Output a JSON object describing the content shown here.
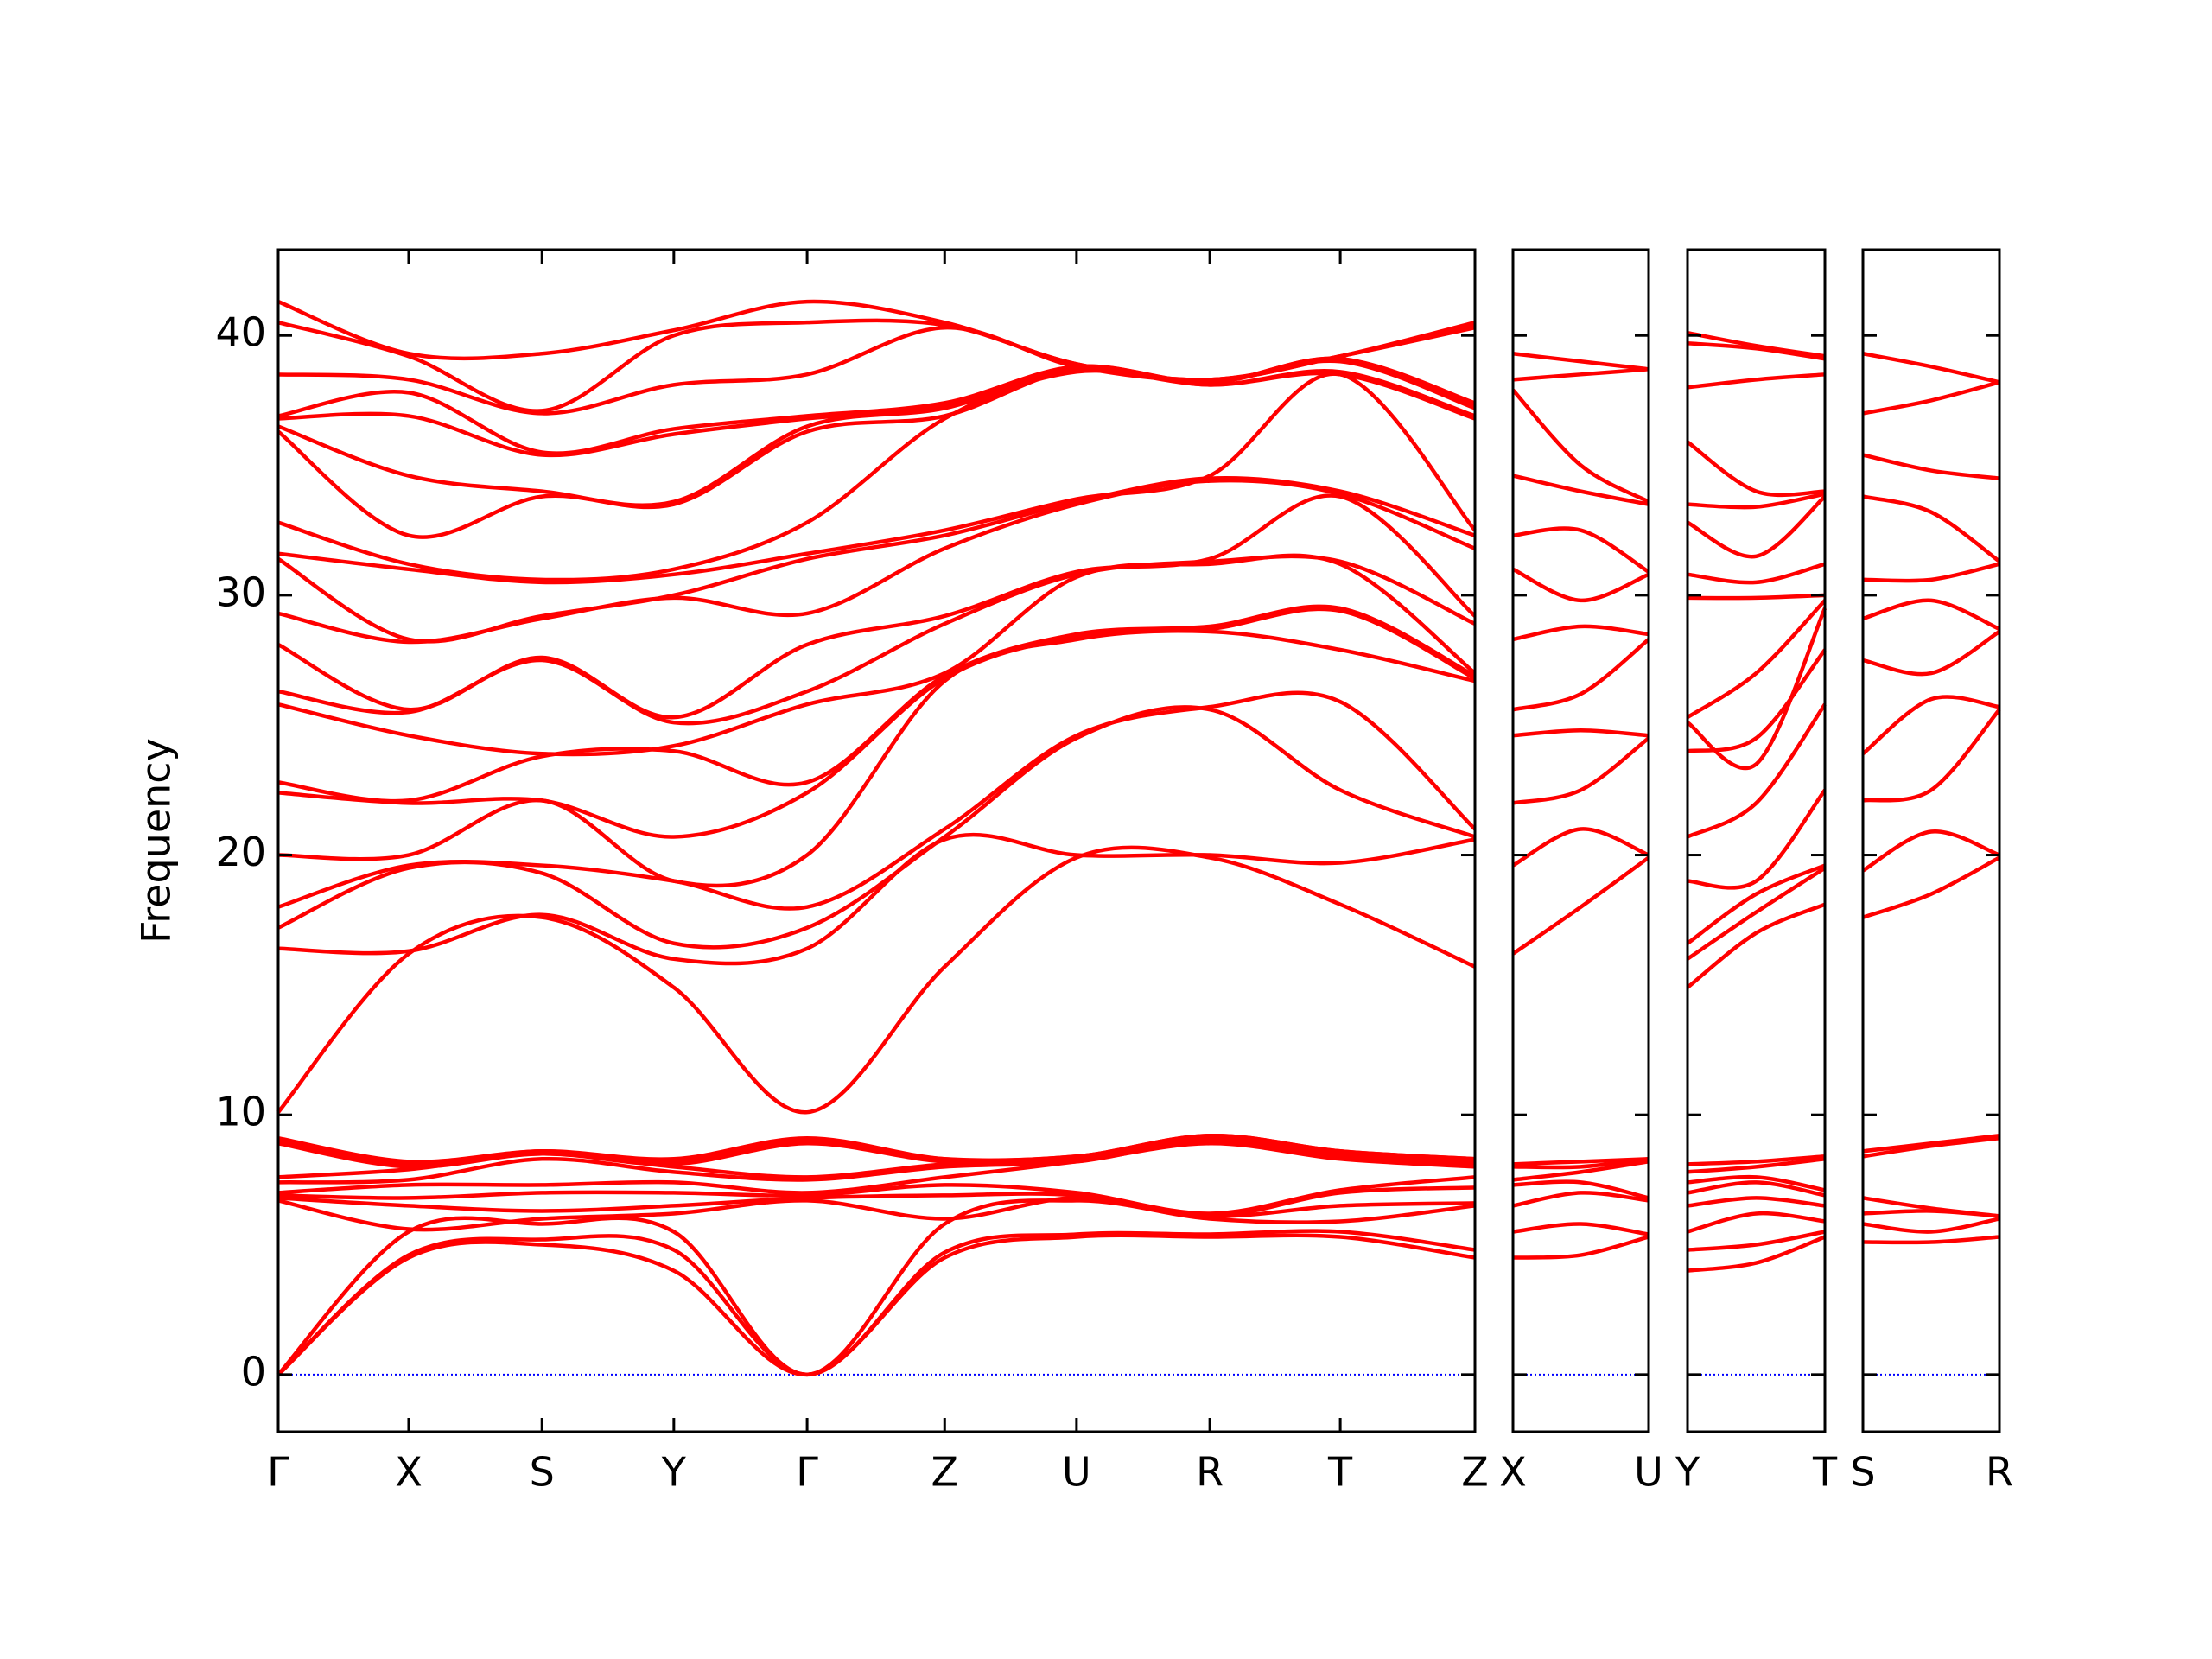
{
  "chart_data": [
    {
      "type": "line",
      "y_label": "Frequency",
      "color": "#ff0000",
      "zero_line_color": "#0000ff",
      "x": [
        0,
        0.92,
        1.86,
        2.79,
        3.73,
        4.7,
        5.63,
        6.57,
        7.49,
        8.44
      ],
      "xlim": [
        0,
        8.44
      ],
      "xticks": [
        {
          "value": 0,
          "label": "Γ"
        },
        {
          "value": 0.92,
          "label": "X"
        },
        {
          "value": 1.86,
          "label": "S"
        },
        {
          "value": 2.79,
          "label": "Y"
        },
        {
          "value": 3.73,
          "label": "Γ"
        },
        {
          "value": 4.7,
          "label": "Z"
        },
        {
          "value": 5.63,
          "label": "U"
        },
        {
          "value": 6.57,
          "label": "R"
        },
        {
          "value": 7.49,
          "label": "T"
        },
        {
          "value": 8.44,
          "label": "Z"
        }
      ],
      "ylim": [
        -2.2,
        43.3
      ],
      "yticks": [
        0,
        10,
        20,
        30,
        40
      ],
      "bands": [
        [
          0,
          4.5,
          5.0,
          4.0,
          0,
          4.5,
          5.3,
          5.3,
          5.3,
          4.5
        ],
        [
          0,
          4.6,
          5.2,
          4.8,
          0,
          4.7,
          5.4,
          5.4,
          5.5,
          4.8
        ],
        [
          0,
          5.5,
          5.8,
          5.5,
          0,
          5.8,
          6.7,
          6.0,
          5.9,
          6.5
        ],
        [
          6.7,
          5.6,
          6.0,
          6.2,
          6.7,
          6.0,
          6.8,
          6.1,
          6.5,
          6.6
        ],
        [
          6.8,
          6.5,
          6.3,
          6.5,
          6.8,
          6.9,
          6.9,
          6.1,
          7.0,
          7.2
        ],
        [
          6.9,
          6.8,
          7.0,
          7.0,
          6.9,
          7.3,
          7.0,
          6.2,
          7.1,
          7.6
        ],
        [
          7.0,
          7.3,
          7.3,
          7.4,
          7.0,
          7.6,
          8.2,
          8.9,
          8.3,
          8.0
        ],
        [
          7.4,
          7.5,
          8.3,
          7.8,
          7.5,
          8.0,
          8.2,
          9.0,
          8.4,
          8.1
        ],
        [
          7.6,
          7.9,
          8.5,
          8.0,
          7.6,
          8.1,
          8.3,
          9.1,
          8.5,
          8.2
        ],
        [
          8.9,
          8.0,
          8.5,
          8.1,
          8.9,
          8.2,
          8.3,
          9.1,
          8.5,
          8.2
        ],
        [
          9.0,
          8.1,
          8.6,
          8.2,
          9.0,
          8.3,
          8.4,
          9.2,
          8.6,
          8.3
        ],
        [
          9.1,
          8.2,
          8.6,
          8.3,
          9.1,
          8.3,
          8.4,
          9.2,
          8.6,
          8.3
        ],
        [
          10.1,
          16.2,
          17.6,
          14.9,
          10.1,
          15.7,
          19.9,
          19.9,
          18.1,
          15.7
        ],
        [
          16.4,
          16.3,
          17.7,
          16.0,
          16.4,
          20.6,
          20.0,
          20.0,
          19.7,
          20.6
        ],
        [
          17.2,
          19.5,
          19.3,
          16.6,
          17.2,
          20.7,
          24.5,
          25.6,
          22.5,
          20.7
        ],
        [
          18.0,
          19.6,
          19.6,
          19.0,
          18.0,
          21.0,
          24.6,
          25.7,
          25.9,
          21.0
        ],
        [
          20.0,
          20.0,
          22.1,
          19.0,
          20.0,
          26.7,
          28.3,
          28.6,
          27.9,
          26.7
        ],
        [
          22.4,
          22.0,
          22.1,
          20.7,
          22.4,
          26.8,
          28.4,
          28.7,
          29.4,
          26.8
        ],
        [
          22.8,
          22.1,
          23.8,
          24.0,
          22.8,
          26.9,
          28.5,
          28.8,
          29.5,
          26.9
        ],
        [
          25.8,
          24.6,
          23.9,
          24.2,
          25.8,
          27.0,
          30.7,
          31.2,
          31.2,
          27.0
        ],
        [
          26.3,
          25.5,
          27.5,
          25.1,
          26.3,
          28.9,
          30.8,
          31.3,
          31.3,
          28.9
        ],
        [
          28.1,
          25.6,
          27.6,
          25.3,
          28.1,
          29.2,
          30.9,
          31.4,
          33.8,
          29.2
        ],
        [
          29.3,
          28.2,
          29.1,
          29.9,
          29.3,
          31.8,
          33.5,
          34.4,
          33.9,
          31.8
        ],
        [
          31.4,
          28.3,
          29.2,
          30.0,
          31.4,
          32.3,
          33.6,
          34.5,
          34.0,
          32.3
        ],
        [
          31.6,
          31.0,
          30.5,
          30.8,
          31.6,
          32.5,
          33.7,
          34.6,
          38.5,
          32.5
        ],
        [
          32.8,
          31.2,
          30.6,
          31.0,
          32.8,
          36.8,
          38.6,
          38.1,
          38.5,
          36.8
        ],
        [
          36.3,
          32.3,
          33.8,
          33.5,
          36.3,
          36.9,
          38.7,
          38.1,
          38.6,
          36.9
        ],
        [
          36.5,
          34.6,
          34.0,
          33.6,
          36.5,
          37.2,
          38.7,
          38.2,
          39.0,
          37.2
        ],
        [
          36.8,
          36.9,
          35.4,
          36.2,
          36.8,
          37.3,
          38.8,
          38.2,
          39.1,
          37.3
        ],
        [
          36.9,
          37.8,
          35.5,
          36.4,
          36.9,
          37.4,
          38.8,
          38.2,
          39.1,
          37.4
        ],
        [
          38.5,
          38.3,
          37.0,
          38.1,
          38.5,
          40.3,
          38.8,
          38.3,
          39.2,
          40.3
        ],
        [
          40.5,
          39.2,
          37.1,
          40.0,
          40.5,
          40.4,
          38.9,
          38.3,
          39.2,
          40.4
        ],
        [
          41.3,
          39.3,
          39.3,
          40.2,
          41.3,
          40.5,
          38.9,
          38.3,
          39.2,
          40.5
        ]
      ]
    },
    {
      "type": "line",
      "color": "#ff0000",
      "zero_line_color": "#0000ff",
      "x": [
        0,
        0.5,
        1
      ],
      "xlim": [
        0,
        1
      ],
      "xticks": [
        {
          "value": 0,
          "label": "X"
        },
        {
          "value": 1,
          "label": "U"
        }
      ],
      "ylim": [
        -2.2,
        43.3
      ],
      "yticks": [
        0,
        10,
        20,
        30,
        40
      ],
      "bands": [
        [
          4.5,
          4.6,
          5.3
        ],
        [
          5.5,
          5.8,
          5.4
        ],
        [
          6.5,
          7.0,
          6.7
        ],
        [
          7.3,
          7.4,
          6.8
        ],
        [
          7.5,
          7.8,
          8.2
        ],
        [
          8.0,
          8.0,
          8.3
        ],
        [
          8.1,
          8.2,
          8.3
        ],
        [
          16.2,
          18.0,
          19.9
        ],
        [
          19.6,
          21.0,
          20.0
        ],
        [
          22.0,
          22.5,
          24.5
        ],
        [
          24.6,
          24.8,
          24.6
        ],
        [
          25.6,
          26.2,
          28.3
        ],
        [
          28.3,
          28.8,
          28.5
        ],
        [
          31.0,
          29.8,
          30.8
        ],
        [
          32.3,
          32.5,
          30.9
        ],
        [
          34.6,
          34.0,
          33.5
        ],
        [
          37.9,
          35.0,
          33.6
        ],
        [
          38.3,
          38.5,
          38.7
        ],
        [
          39.3,
          39.0,
          38.7
        ]
      ]
    },
    {
      "type": "line",
      "color": "#ff0000",
      "zero_line_color": "#0000ff",
      "x": [
        0,
        0.5,
        1
      ],
      "xlim": [
        0,
        1
      ],
      "xticks": [
        {
          "value": 0,
          "label": "Y"
        },
        {
          "value": 1,
          "label": "T"
        }
      ],
      "ylim": [
        -2.2,
        43.3
      ],
      "yticks": [
        0,
        10,
        20,
        30,
        40
      ],
      "bands": [
        [
          4.0,
          4.3,
          5.3
        ],
        [
          4.8,
          5.0,
          5.5
        ],
        [
          5.5,
          6.2,
          5.9
        ],
        [
          6.5,
          6.8,
          6.5
        ],
        [
          7.0,
          7.4,
          6.9
        ],
        [
          7.4,
          7.6,
          7.1
        ],
        [
          7.8,
          8.0,
          8.3
        ],
        [
          8.1,
          8.2,
          8.4
        ],
        [
          14.9,
          17.0,
          18.1
        ],
        [
          16.0,
          17.8,
          19.5
        ],
        [
          16.6,
          18.5,
          19.6
        ],
        [
          19.0,
          19.0,
          22.5
        ],
        [
          20.7,
          22.0,
          25.8
        ],
        [
          24.0,
          24.5,
          27.9
        ],
        [
          25.1,
          23.5,
          29.5
        ],
        [
          25.3,
          27.0,
          29.8
        ],
        [
          29.9,
          29.9,
          30.0
        ],
        [
          30.8,
          30.5,
          31.2
        ],
        [
          32.8,
          31.5,
          33.8
        ],
        [
          33.5,
          33.4,
          33.9
        ],
        [
          35.9,
          34.0,
          34.0
        ],
        [
          38.0,
          38.3,
          38.5
        ],
        [
          39.7,
          39.5,
          39.1
        ],
        [
          40.1,
          39.6,
          39.2
        ]
      ]
    },
    {
      "type": "line",
      "color": "#ff0000",
      "zero_line_color": "#0000ff",
      "x": [
        0,
        0.5,
        1
      ],
      "xlim": [
        0,
        1
      ],
      "xticks": [
        {
          "value": 0,
          "label": "S"
        },
        {
          "value": 1,
          "label": "R"
        }
      ],
      "ylim": [
        -2.2,
        43.3
      ],
      "yticks": [
        0,
        10,
        20,
        30,
        40
      ],
      "bands": [
        [
          5.1,
          5.1,
          5.3
        ],
        [
          5.8,
          5.5,
          6.0
        ],
        [
          6.2,
          6.3,
          6.1
        ],
        [
          6.8,
          6.4,
          6.1
        ],
        [
          8.4,
          8.8,
          9.1
        ],
        [
          8.6,
          8.9,
          9.2
        ],
        [
          17.6,
          18.5,
          19.9
        ],
        [
          19.4,
          20.9,
          20.0
        ],
        [
          22.1,
          22.5,
          25.6
        ],
        [
          23.9,
          26.0,
          25.7
        ],
        [
          27.5,
          27.0,
          28.6
        ],
        [
          29.1,
          29.8,
          28.7
        ],
        [
          30.6,
          30.6,
          31.2
        ],
        [
          33.8,
          33.2,
          31.3
        ],
        [
          35.4,
          34.8,
          34.5
        ],
        [
          37.0,
          37.5,
          38.2
        ],
        [
          39.3,
          38.8,
          38.2
        ]
      ]
    }
  ]
}
